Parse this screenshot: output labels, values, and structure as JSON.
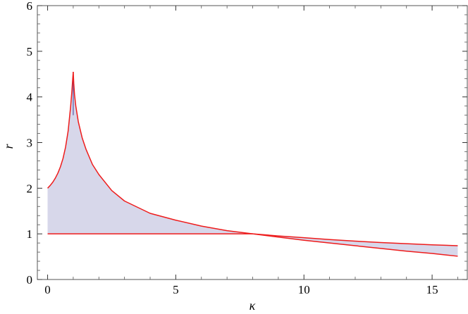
{
  "chart_data": {
    "type": "area",
    "title": "",
    "xlabel": "κ",
    "ylabel": "r",
    "xlim": [
      -0.4,
      16.4
    ],
    "ylim": [
      0,
      6
    ],
    "grid": false,
    "legend": "none",
    "x_ticks": [
      "0",
      "5",
      "10",
      "15"
    ],
    "y_ticks": [
      "0",
      "1",
      "2",
      "3",
      "4",
      "5",
      "6"
    ],
    "colors": {
      "curve": "#ee1c1c",
      "fill": "#d7d7ea",
      "spike": "#3d3d99",
      "frame": "#555555"
    },
    "series": [
      {
        "role": "upper-left-branch",
        "x": [
          0,
          0.1,
          0.2,
          0.3,
          0.4,
          0.5,
          0.6,
          0.7,
          0.8,
          0.9,
          0.95,
          0.98,
          1.0
        ],
        "y": [
          2.0,
          2.06,
          2.13,
          2.22,
          2.33,
          2.47,
          2.65,
          2.9,
          3.25,
          3.8,
          4.15,
          4.4,
          4.55
        ]
      },
      {
        "role": "upper-right-branch",
        "x": [
          1.0,
          1.02,
          1.05,
          1.1,
          1.2,
          1.35,
          1.5,
          1.75,
          2,
          2.5,
          3,
          4,
          5,
          6,
          7,
          8,
          9,
          10,
          11,
          12,
          13,
          14,
          15,
          16
        ],
        "y": [
          4.55,
          4.3,
          4.05,
          3.8,
          3.45,
          3.1,
          2.85,
          2.52,
          2.3,
          1.95,
          1.72,
          1.45,
          1.3,
          1.17,
          1.07,
          1.0,
          0.93,
          0.86,
          0.8,
          0.74,
          0.68,
          0.62,
          0.57,
          0.51
        ]
      },
      {
        "role": "lower-curve",
        "x": [
          0,
          1,
          2,
          3,
          4,
          5,
          6,
          7,
          8,
          9,
          10,
          11,
          12,
          13,
          14,
          15,
          16
        ],
        "y": [
          1,
          1,
          1,
          1,
          1,
          1,
          1,
          1,
          1,
          0.955,
          0.915,
          0.875,
          0.84,
          0.81,
          0.785,
          0.76,
          0.74
        ]
      }
    ]
  }
}
